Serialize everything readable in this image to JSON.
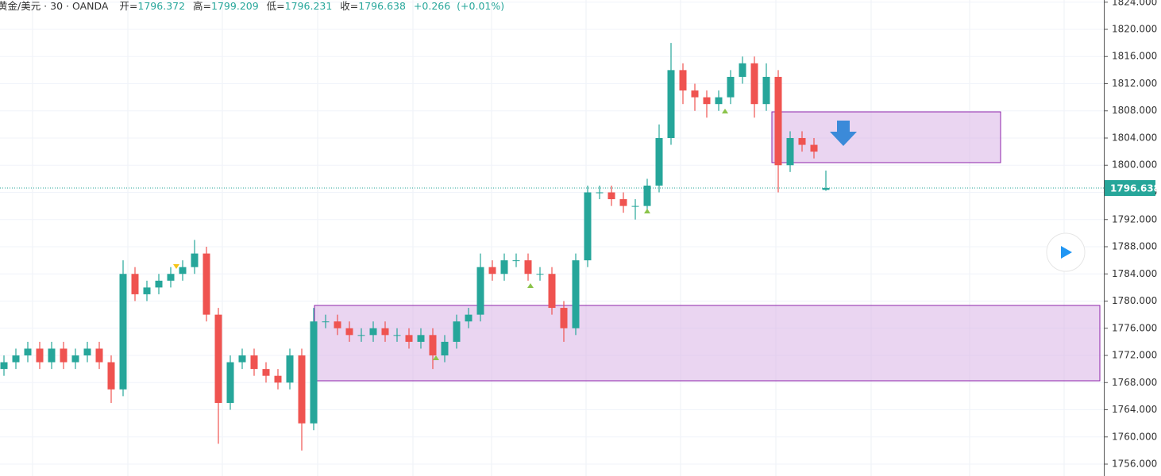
{
  "header": {
    "symbol": "黄金/美元 · 30 · OANDA",
    "open_label": "开=",
    "high_label": "高=",
    "low_label": "低=",
    "close_label": "收=",
    "change": "+0.266",
    "change_pct": "(+0.01%)"
  },
  "chart_data": {
    "type": "candlestick",
    "open": [
      1770,
      1771,
      1772,
      1773,
      1771,
      1773,
      1771,
      1772,
      1773,
      1771,
      1767,
      1784,
      1781,
      1782,
      1783,
      1784,
      1785,
      1787,
      1778,
      1765,
      1771,
      1772,
      1770,
      1769,
      1768,
      1772,
      1762,
      1777,
      1777,
      1776,
      1775,
      1775,
      1776,
      1775,
      1775,
      1774,
      1775,
      1772,
      1774,
      1777,
      1778,
      1785,
      1784,
      1786,
      1786,
      1784,
      1784,
      1779,
      1776,
      1786,
      1796,
      1796,
      1795,
      1794,
      1794,
      1797,
      1804,
      1814,
      1811,
      1810,
      1809,
      1810,
      1813,
      1815,
      1809,
      1813,
      1800,
      1804,
      1803,
      1796.372
    ],
    "high": [
      1772,
      1773,
      1774,
      1774,
      1774,
      1774,
      1773,
      1774,
      1774,
      1772,
      1786,
      1785,
      1783,
      1784,
      1785,
      1786,
      1789,
      1788,
      1779,
      1772,
      1773,
      1773,
      1771,
      1770,
      1773,
      1773,
      1779,
      1778,
      1778,
      1777,
      1776,
      1777,
      1777,
      1776,
      1776,
      1776,
      1776,
      1775,
      1778,
      1779,
      1787,
      1786,
      1787,
      1787,
      1787,
      1785,
      1785,
      1780,
      1787,
      1797,
      1797,
      1797,
      1796,
      1795,
      1798,
      1806,
      1818,
      1815,
      1812,
      1811,
      1811,
      1814,
      1816,
      1816,
      1815,
      1814,
      1805,
      1805,
      1804,
      1799.209
    ],
    "low": [
      1769,
      1770,
      1771,
      1770,
      1770,
      1770,
      1770,
      1771,
      1770,
      1765,
      1766,
      1780,
      1780,
      1781,
      1782,
      1783,
      1784,
      1777,
      1759,
      1764,
      1770,
      1769,
      1768,
      1767,
      1767,
      1758,
      1761,
      1776,
      1775,
      1774,
      1774,
      1774,
      1774,
      1774,
      1773,
      1773,
      1770,
      1771,
      1773,
      1776,
      1777,
      1783,
      1783,
      1785,
      1783,
      1783,
      1778,
      1774,
      1775,
      1785,
      1795,
      1794,
      1793,
      1792,
      1793,
      1796,
      1803,
      1809,
      1808,
      1807,
      1808,
      1809,
      1812,
      1807,
      1808,
      1796,
      1799,
      1802,
      1801,
      1796.231
    ],
    "close": [
      1771,
      1772,
      1773,
      1771,
      1773,
      1771,
      1772,
      1773,
      1771,
      1767,
      1784,
      1781,
      1782,
      1783,
      1784,
      1785,
      1787,
      1778,
      1765,
      1771,
      1772,
      1770,
      1769,
      1768,
      1772,
      1762,
      1777,
      1777,
      1776,
      1775,
      1775,
      1776,
      1775,
      1775,
      1774,
      1775,
      1772,
      1774,
      1777,
      1778,
      1785,
      1784,
      1786,
      1786,
      1784,
      1784,
      1779,
      1776,
      1786,
      1796,
      1796,
      1795,
      1794,
      1794,
      1797,
      1804,
      1814,
      1811,
      1810,
      1809,
      1810,
      1813,
      1815,
      1809,
      1813,
      1800,
      1804,
      1803,
      1802,
      1796.638
    ],
    "up_color": "#26a69a",
    "down_color": "#ef5350",
    "ylim": [
      1754.25,
      1824.32
    ],
    "yticks": [
      {
        "value": 1756,
        "label": "1756.000"
      },
      {
        "value": 1760,
        "label": "1760.000"
      },
      {
        "value": 1764,
        "label": "1764.000"
      },
      {
        "value": 1768,
        "label": "1768.000"
      },
      {
        "value": 1772,
        "label": "1772.000"
      },
      {
        "value": 1776,
        "label": "1776.000"
      },
      {
        "value": 1780,
        "label": "1780.000"
      },
      {
        "value": 1784,
        "label": "1784.000"
      },
      {
        "value": 1788,
        "label": "1788.000"
      },
      {
        "value": 1792,
        "label": "1792.000"
      },
      {
        "value": 1796,
        "label": "1796.000"
      },
      {
        "value": 1800,
        "label": "1800.000"
      },
      {
        "value": 1804,
        "label": "1804.000"
      },
      {
        "value": 1808,
        "label": "1808.000"
      },
      {
        "value": 1812,
        "label": "1812.000"
      },
      {
        "value": 1816,
        "label": "1816.000"
      },
      {
        "value": 1820,
        "label": "1820.000"
      },
      {
        "value": 1824,
        "label": "1824.000"
      }
    ],
    "grid": true,
    "last_price_line": true
  }
}
